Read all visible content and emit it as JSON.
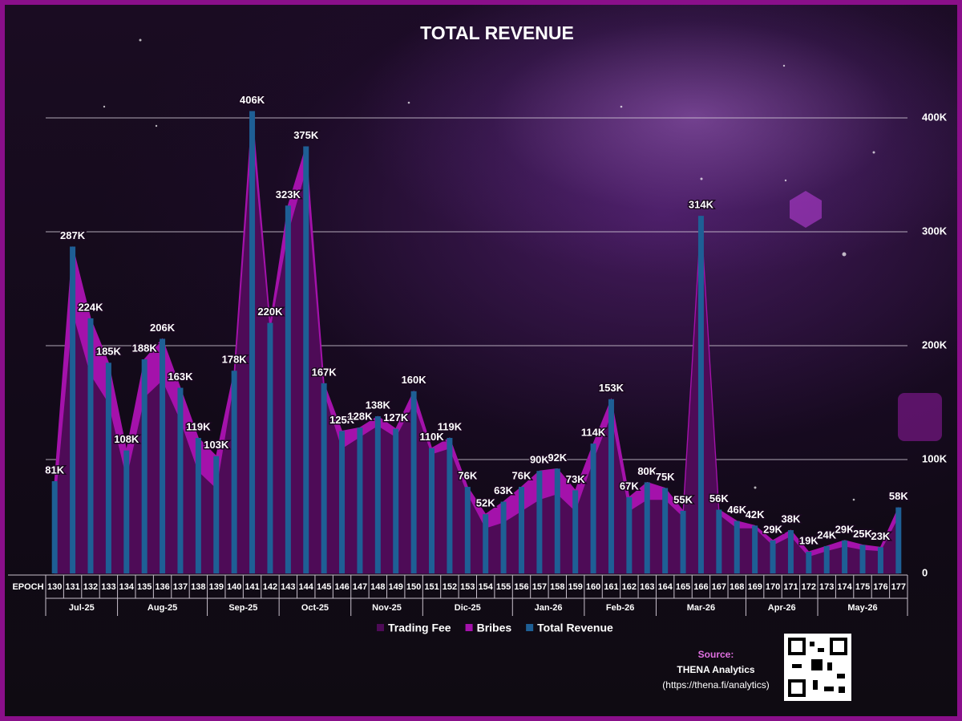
{
  "chart_data": {
    "type": "combo",
    "title": "TOTAL REVENUE",
    "x_label": "EPOCH",
    "categories": [
      "130",
      "131",
      "132",
      "133",
      "134",
      "135",
      "136",
      "137",
      "138",
      "139",
      "140",
      "141",
      "142",
      "143",
      "144",
      "145",
      "146",
      "147",
      "148",
      "149",
      "150",
      "151",
      "152",
      "153",
      "154",
      "155",
      "156",
      "157",
      "158",
      "159",
      "160",
      "161",
      "162",
      "163",
      "164",
      "165",
      "166",
      "167",
      "168",
      "169",
      "170",
      "171",
      "172",
      "173",
      "174",
      "175",
      "176",
      "177"
    ],
    "month_categories": [
      "Jul-25",
      null,
      null,
      null,
      "Aug-25",
      null,
      null,
      null,
      null,
      "Sep-25",
      null,
      null,
      null,
      "Oct-25",
      null,
      null,
      null,
      "Nov-25",
      null,
      null,
      null,
      "Dic-25",
      null,
      null,
      null,
      null,
      "Jan-26",
      null,
      null,
      null,
      "Feb-26",
      null,
      null,
      null,
      "Mar-26",
      null,
      null,
      null,
      null,
      "Apr-26",
      null,
      null,
      null,
      "May-26",
      null,
      null,
      null,
      null
    ],
    "series": [
      {
        "name": "Trading Fee",
        "type": "area",
        "color": "#4e0b57",
        "values": [
          60,
          230,
          175,
          150,
          85,
          155,
          170,
          135,
          90,
          75,
          170,
          390,
          215,
          300,
          355,
          160,
          110,
          120,
          130,
          120,
          150,
          105,
          110,
          70,
          40,
          45,
          55,
          65,
          70,
          55,
          100,
          140,
          55,
          65,
          65,
          50,
          310,
          52,
          40,
          40,
          25,
          33,
          15,
          20,
          24,
          21,
          20,
          50
        ]
      },
      {
        "name": "Bribes",
        "type": "area",
        "stacked": true,
        "color": "#a412ab",
        "values": [
          21,
          57,
          49,
          35,
          23,
          33,
          36,
          28,
          29,
          28,
          8,
          16,
          5,
          23,
          20,
          7,
          15,
          8,
          8,
          7,
          10,
          5,
          9,
          6,
          12,
          18,
          21,
          25,
          22,
          18,
          14,
          13,
          12,
          15,
          10,
          5,
          4,
          4,
          6,
          2,
          4,
          5,
          4,
          4,
          5,
          4,
          3,
          8
        ]
      },
      {
        "name": "Total Revenue",
        "type": "bar",
        "color": "#1e5f95",
        "values": [
          81,
          287,
          224,
          185,
          108,
          188,
          206,
          163,
          119,
          103,
          178,
          406,
          220,
          323,
          375,
          167,
          125,
          128,
          138,
          127,
          160,
          110,
          119,
          76,
          52,
          63,
          76,
          90,
          92,
          73,
          114,
          153,
          67,
          80,
          75,
          55,
          314,
          56,
          46,
          42,
          29,
          38,
          19,
          24,
          29,
          25,
          23,
          58
        ],
        "value_labels": [
          "81K",
          "287K",
          "224K",
          "185K",
          "108K",
          "188K",
          "206K",
          "163K",
          "119K",
          "103K",
          "178K",
          "406K",
          "220K",
          "323K",
          "375K",
          "167K",
          "125K",
          "128K",
          "138K",
          "127K",
          "160K",
          "110K",
          "119K",
          "76K",
          "52K",
          "63K",
          "76K",
          "90K",
          "92K",
          "73K",
          "114K",
          "153K",
          "67K",
          "80K",
          "75K",
          "55K",
          "314K",
          "56K",
          "46K",
          "42K",
          "29K",
          "38K",
          "19K",
          "24K",
          "29K",
          "25K",
          "23K",
          "58K"
        ]
      }
    ],
    "ylim": [
      0,
      450
    ],
    "yticks": [
      0,
      {
        "value": 100,
        "label": "100K"
      },
      {
        "value": 200,
        "label": "200K"
      },
      {
        "value": 300,
        "label": "300K"
      },
      {
        "value": 400,
        "label": "400K"
      }
    ],
    "grid": true,
    "y_axis_side": "right",
    "legend": "bottom"
  },
  "source": {
    "label": "Source:",
    "name": "THENA Analytics",
    "url": "(https://thena.fi/analytics)"
  }
}
